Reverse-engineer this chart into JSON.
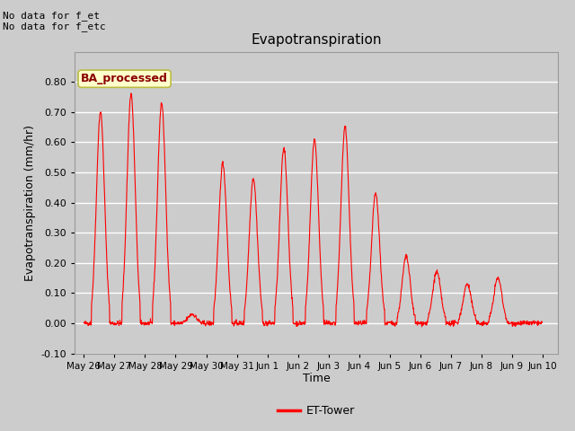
{
  "title": "Evapotranspiration",
  "xlabel": "Time",
  "ylabel": "Evapotranspiration (mm/hr)",
  "ylim": [
    -0.1,
    0.9
  ],
  "yticks": [
    -0.1,
    0.0,
    0.1,
    0.2,
    0.3,
    0.4,
    0.5,
    0.6,
    0.7,
    0.8
  ],
  "line_color": "red",
  "bg_color": "#cccccc",
  "plot_bg_color": "#cccccc",
  "annotation_text1": "No data for f_et",
  "annotation_text2": "No data for f_etc",
  "legend_label": "ET-Tower",
  "box_label": "BA_processed",
  "box_facecolor": "#ffffcc",
  "box_edgecolor": "#bbbb44",
  "day_labels": [
    "May 26",
    "May 27",
    "May 28",
    "May 29",
    "May 30",
    "May 31",
    "Jun 1",
    "Jun 2",
    "Jun 3",
    "Jun 4",
    "Jun 5",
    "Jun 6",
    "Jun 7",
    "Jun 8",
    "Jun 9",
    "Jun 10"
  ],
  "day_positions": [
    0,
    1,
    2,
    3,
    4,
    5,
    6,
    7,
    8,
    9,
    10,
    11,
    12,
    13,
    14,
    15
  ],
  "peaks": [
    0.7,
    0.76,
    0.73,
    0.03,
    0.53,
    0.48,
    0.58,
    0.61,
    0.65,
    0.43,
    0.22,
    0.17,
    0.13,
    0.15,
    0.01
  ]
}
